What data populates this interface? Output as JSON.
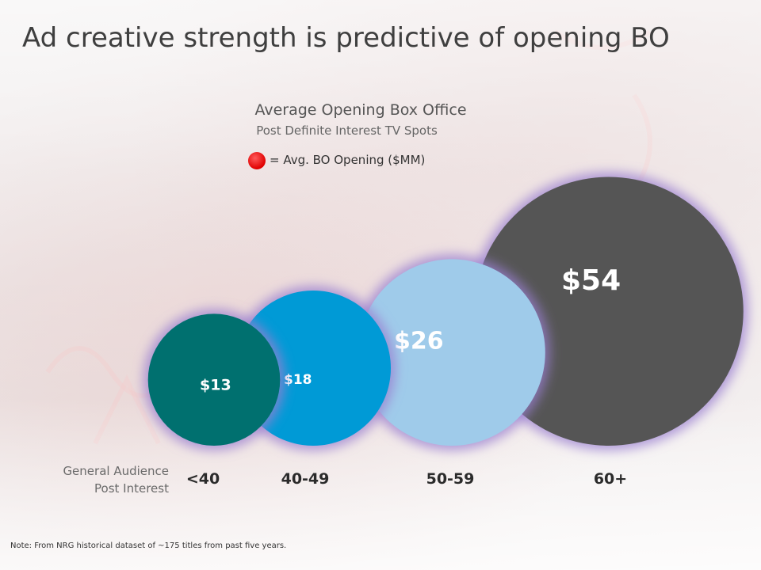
{
  "title": "Ad creative strength is predictive of opening BO",
  "chart_data": {
    "type": "bubble",
    "title": "Average Opening Box Office",
    "subtitle": "Post Definite Interest TV Spots",
    "legend": {
      "marker_color": "#e00000",
      "label": "= Avg. BO Opening ($MM)"
    },
    "xlabel_lines": [
      "General Audience",
      "Post Interest"
    ],
    "categories": [
      "<40",
      "40-49",
      "50-59",
      "60+"
    ],
    "values": [
      13,
      18,
      26,
      54
    ],
    "value_labels": [
      "$13",
      "$18",
      "$26",
      "$54"
    ],
    "colors": [
      "#00706f",
      "#009ad6",
      "#9fcbea",
      "#555555"
    ]
  },
  "note": "Note: From NRG historical dataset of ~175 titles from past five years."
}
